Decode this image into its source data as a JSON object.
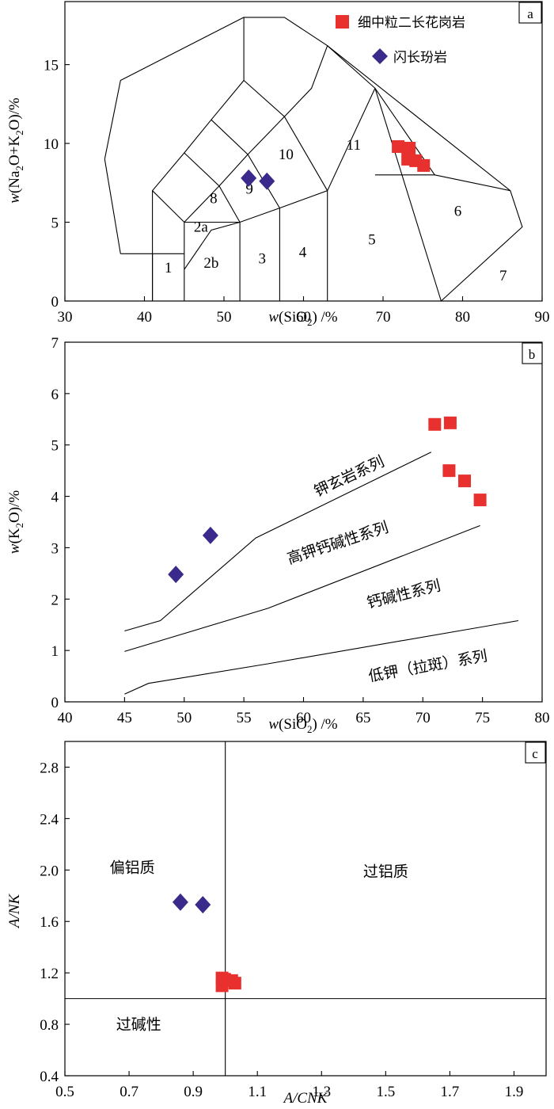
{
  "colors": {
    "granite": "#e8312f",
    "diorite": "#3b2a8c"
  },
  "legend": {
    "granite": "细中粒二长花岗岩",
    "diorite": "闪长玢岩"
  },
  "chart_data": [
    {
      "id": "a",
      "type": "scatter",
      "panel_label": "a",
      "xlabel": {
        "pre": "w",
        "open": "(SiO",
        "sub": "2",
        "close": ") /%"
      },
      "ylabel": {
        "pre": "w",
        "t1": "(Na",
        "s1": "2",
        "t2": "O+K",
        "s2": "2",
        "t3": "O)/%"
      },
      "xlim": [
        30,
        90
      ],
      "ylim": [
        0,
        19
      ],
      "xticks": [
        "30",
        "40",
        "50",
        "60",
        "70",
        "80",
        "90"
      ],
      "yticks": [
        "0",
        "5",
        "10",
        "15"
      ],
      "field_labels": [
        {
          "text": "1",
          "x": 43,
          "y": 1.8
        },
        {
          "text": "2a",
          "x": 47.1,
          "y": 4.4
        },
        {
          "text": "2b",
          "x": 48.4,
          "y": 2.1
        },
        {
          "text": "3",
          "x": 54.8,
          "y": 2.4
        },
        {
          "text": "4",
          "x": 59.9,
          "y": 2.8
        },
        {
          "text": "5",
          "x": 68.6,
          "y": 3.6
        },
        {
          "text": "6",
          "x": 79.4,
          "y": 5.4
        },
        {
          "text": "7",
          "x": 85.1,
          "y": 1.3
        },
        {
          "text": "8",
          "x": 48.7,
          "y": 6.2
        },
        {
          "text": "9",
          "x": 53.2,
          "y": 6.8
        },
        {
          "text": "10",
          "x": 57.8,
          "y": 9.0
        },
        {
          "text": "11",
          "x": 66.3,
          "y": 9.6
        }
      ],
      "series": [
        {
          "name": "细中粒二长花岗岩",
          "marker": "square",
          "x": [
            71.9,
            73.3,
            73.1,
            74.1,
            75.1
          ],
          "y": [
            9.8,
            9.7,
            9.0,
            8.9,
            8.6
          ]
        },
        {
          "name": "闪长玢岩",
          "marker": "diamond",
          "x": [
            53.1,
            55.4
          ],
          "y": [
            7.8,
            7.6
          ]
        }
      ]
    },
    {
      "id": "b",
      "type": "scatter",
      "panel_label": "b",
      "xlabel": {
        "pre": "w",
        "open": "(SiO",
        "sub": "2",
        "close": ") /%"
      },
      "ylabel": {
        "pre": "w",
        "t1": "(K",
        "s1": "2",
        "t2": "O)/%"
      },
      "xlim": [
        40,
        80
      ],
      "ylim": [
        0,
        7
      ],
      "xticks": [
        "40",
        "45",
        "50",
        "55",
        "60",
        "65",
        "70",
        "75",
        "80"
      ],
      "yticks": [
        "0",
        "1",
        "2",
        "3",
        "4",
        "5",
        "6",
        "7"
      ],
      "series_labels": [
        {
          "text": "钾玄岩系列",
          "x": 64,
          "y": 4.3,
          "angle": -25
        },
        {
          "text": "高钾钙碱性系列",
          "x": 63,
          "y": 3.0,
          "angle": -18
        },
        {
          "text": "钙碱性系列",
          "x": 68.5,
          "y": 2.0,
          "angle": -14
        },
        {
          "text": "低钾（拉斑）系列",
          "x": 70.5,
          "y": 0.6,
          "angle": -10
        }
      ],
      "series": [
        {
          "name": "细中粒二长花岗岩",
          "marker": "square",
          "x": [
            71,
            72.3,
            72.2,
            73.5,
            74.8
          ],
          "y": [
            5.4,
            5.43,
            4.5,
            4.3,
            3.93
          ]
        },
        {
          "name": "闪长玢岩",
          "marker": "diamond",
          "x": [
            49.3,
            52.2
          ],
          "y": [
            2.48,
            3.24
          ]
        }
      ]
    },
    {
      "id": "c",
      "type": "scatter",
      "panel_label": "c",
      "xlabel": {
        "text": "A/CNK"
      },
      "ylabel": {
        "text": "A/NK"
      },
      "xlim": [
        0.5,
        2.0
      ],
      "ylim": [
        0.4,
        3.0
      ],
      "xticks": [
        "0.5",
        "0.7",
        "0.9",
        "1.1",
        "1.3",
        "1.5",
        "1.7",
        "1.9"
      ],
      "yticks": [
        "0.4",
        "0.8",
        "1.2",
        "1.6",
        "2.0",
        "2.4",
        "2.8"
      ],
      "region_labels": [
        {
          "text": "偏铝质",
          "x": 0.71,
          "y": 1.98
        },
        {
          "text": "过铝质",
          "x": 1.5,
          "y": 1.95
        },
        {
          "text": "过碱性",
          "x": 0.73,
          "y": 0.76
        }
      ],
      "series": [
        {
          "name": "细中粒二长花岗岩",
          "marker": "square",
          "x": [
            0.99,
            0.998,
            1.02,
            1.03,
            0.99
          ],
          "y": [
            1.16,
            1.15,
            1.14,
            1.12,
            1.1
          ]
        },
        {
          "name": "闪长玢岩",
          "marker": "diamond",
          "x": [
            0.86,
            0.93
          ],
          "y": [
            1.75,
            1.73
          ]
        }
      ]
    }
  ]
}
